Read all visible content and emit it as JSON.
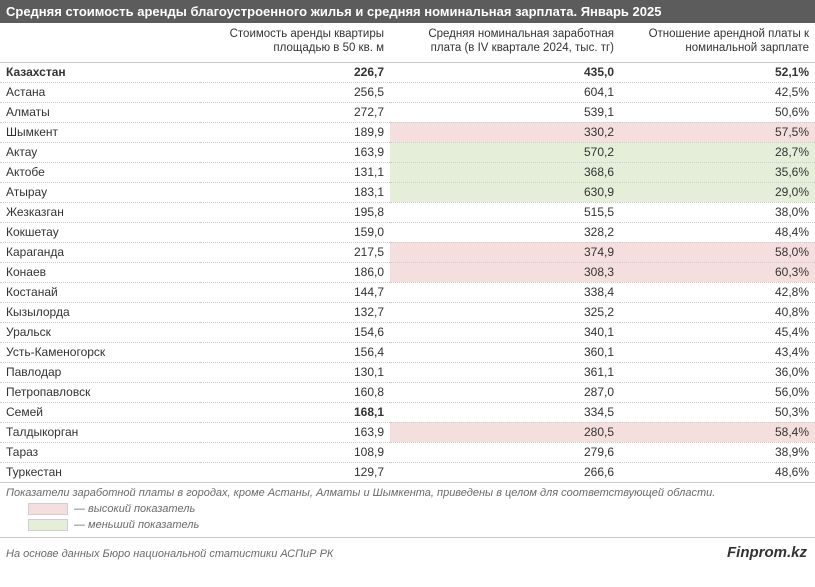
{
  "title": "Средняя стоимость аренды благоустроенного жилья и средняя номинальная зарплата. Январь 2025",
  "columns": {
    "name": "",
    "rent": "Стоимость аренды квартиры площадью в 50 кв. м",
    "wage": "Средняя номинальная заработная плата (в IV квартале 2024, тыс. тг)",
    "ratio": "Отношение арендной платы к номинальной зарплате"
  },
  "rows": [
    {
      "name": "Казахстан",
      "rent": "226,7",
      "wage": "435,0",
      "ratio": "52,1%",
      "summary": true
    },
    {
      "name": "Астана",
      "rent": "256,5",
      "wage": "604,1",
      "ratio": "42,5%"
    },
    {
      "name": "Алматы",
      "rent": "272,7",
      "wage": "539,1",
      "ratio": "50,6%"
    },
    {
      "name": "Шымкент",
      "rent": "189,9",
      "wage": "330,2",
      "ratio": "57,5%",
      "wage_hl": "high",
      "ratio_hl": "high"
    },
    {
      "name": "Актау",
      "rent": "163,9",
      "wage": "570,2",
      "ratio": "28,7%",
      "wage_hl": "low",
      "ratio_hl": "low"
    },
    {
      "name": "Актобе",
      "rent": "131,1",
      "wage": "368,6",
      "ratio": "35,6%",
      "wage_hl": "low",
      "ratio_hl": "low"
    },
    {
      "name": "Атырау",
      "rent": "183,1",
      "wage": "630,9",
      "ratio": "29,0%",
      "wage_hl": "low",
      "ratio_hl": "low"
    },
    {
      "name": "Жезказган",
      "rent": "195,8",
      "wage": "515,5",
      "ratio": "38,0%"
    },
    {
      "name": "Кокшетау",
      "rent": "159,0",
      "wage": "328,2",
      "ratio": "48,4%"
    },
    {
      "name": "Караганда",
      "rent": "217,5",
      "wage": "374,9",
      "ratio": "58,0%",
      "wage_hl": "high",
      "ratio_hl": "high"
    },
    {
      "name": "Конаев",
      "rent": "186,0",
      "wage": "308,3",
      "ratio": "60,3%",
      "wage_hl": "high",
      "ratio_hl": "high"
    },
    {
      "name": "Костанай",
      "rent": "144,7",
      "wage": "338,4",
      "ratio": "42,8%"
    },
    {
      "name": "Кызылорда",
      "rent": "132,7",
      "wage": "325,2",
      "ratio": "40,8%"
    },
    {
      "name": "Уральск",
      "rent": "154,6",
      "wage": "340,1",
      "ratio": "45,4%"
    },
    {
      "name": "Усть-Каменогорск",
      "rent": "156,4",
      "wage": "360,1",
      "ratio": "43,4%"
    },
    {
      "name": "Павлодар",
      "rent": "130,1",
      "wage": "361,1",
      "ratio": "36,0%"
    },
    {
      "name": "Петропавловск",
      "rent": "160,8",
      "wage": "287,0",
      "ratio": "56,0%"
    },
    {
      "name": "Семей",
      "rent": "168,1",
      "rent_bold": true,
      "wage": "334,5",
      "ratio": "50,3%"
    },
    {
      "name": "Талдыкорган",
      "rent": "163,9",
      "wage": "280,5",
      "ratio": "58,4%",
      "wage_hl": "high",
      "ratio_hl": "high"
    },
    {
      "name": "Тараз",
      "rent": "108,9",
      "wage": "279,6",
      "ratio": "38,9%"
    },
    {
      "name": "Туркестан",
      "rent": "129,7",
      "wage": "266,6",
      "ratio": "48,6%"
    }
  ],
  "footnote": "Показатели заработной платы в городах, кроме Астаны, Алматы и Шымкента, приведены в целом для соответствующей области.",
  "legend": {
    "high": "— высокий показатель",
    "low": "— меньший показатель"
  },
  "source": "На основе данных Бюро национальной статистики АСПиР РК",
  "brand": "Finprom.kz",
  "colors": {
    "title_bg": "#5c5c5c",
    "hl_high": "#f5dede",
    "hl_low": "#e5eed9",
    "border": "#c9c9c9",
    "text": "#333333",
    "muted": "#6a6a6a"
  },
  "font_sizes": {
    "title": 13,
    "header": 11.5,
    "cell": 12,
    "footnote": 11,
    "brand": 15
  }
}
